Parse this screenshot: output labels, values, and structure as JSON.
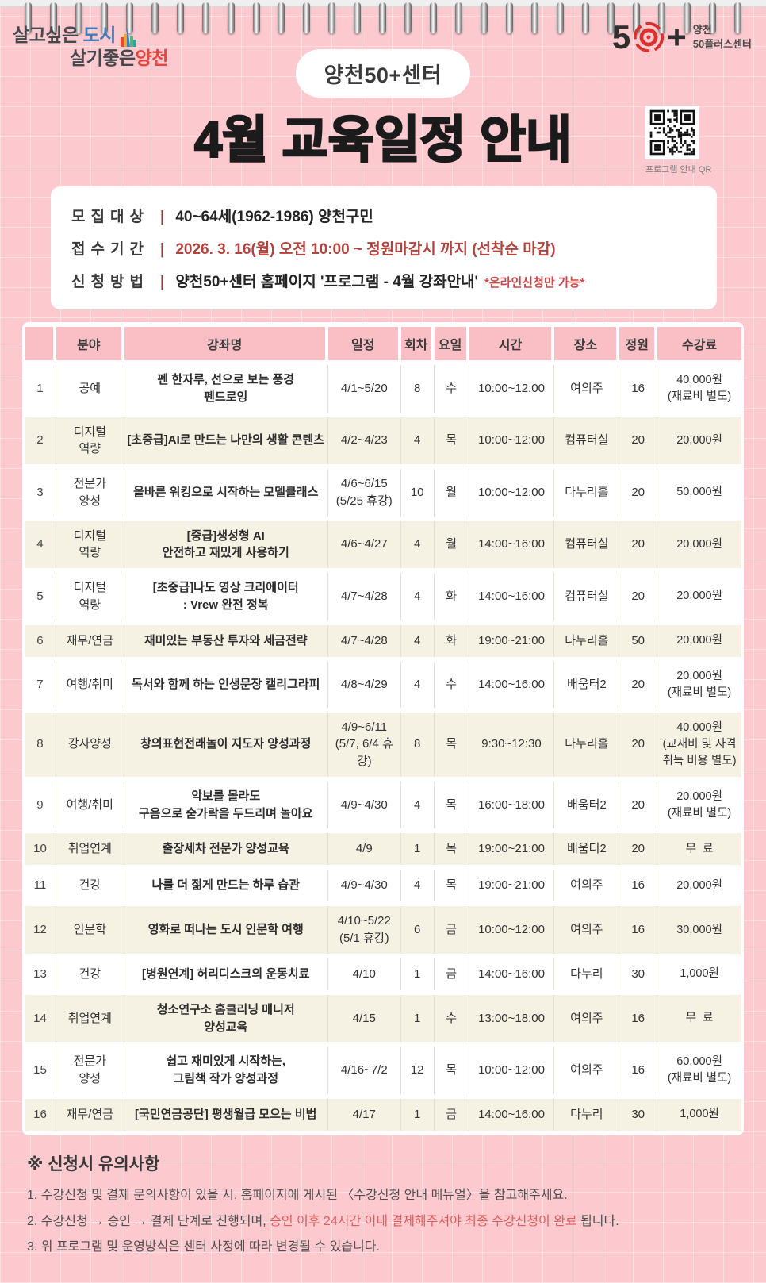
{
  "page": {
    "bg_color": "#fbc9ce",
    "header_pink": "#f9bfc5",
    "stripe_cream": "#f5f1e3",
    "accent_red": "#b6423e"
  },
  "brand": {
    "city_logo": {
      "line1_prefix": "살고싶은 ",
      "line1_highlight": "도시",
      "line2_prefix": "살기좋은",
      "line2_highlight": "양천",
      "building_icon": "building-skyline-icon"
    },
    "fifty_logo": {
      "five": "5",
      "plus": "+",
      "target_icon": "bullseye-icon",
      "org_line1": "양천",
      "org_line2": "50플러스센터"
    }
  },
  "header": {
    "badge": "양천50+센터",
    "title": "4월 교육일정 안내",
    "qr_icon": "qr-code-icon",
    "qr_caption": "프로그램 안내 QR"
  },
  "info": {
    "rows": [
      {
        "label": "모집대상",
        "divider": "|",
        "value": "40~64세(1962-1986) 양천구민"
      },
      {
        "label": "접수기간",
        "divider": "|",
        "value": "2026. 3. 16(월) 오전 10:00 ~ 정원마감시 까지 (선착순 마감)"
      },
      {
        "label": "신청방법",
        "divider": "|",
        "value": "양천50+센터 홈페이지 '프로그램 - 4월 강좌안내'",
        "suffix": "*온라인신청만 가능*"
      }
    ]
  },
  "table": {
    "headers": [
      "",
      "분야",
      "강좌명",
      "일정",
      "회차",
      "요일",
      "시간",
      "장소",
      "정원",
      "수강료"
    ],
    "rows": [
      [
        "1",
        "공예",
        "펜 한자루, 선으로 보는 풍경\n펜드로잉",
        "4/1~5/20",
        "8",
        "수",
        "10:00~12:00",
        "여의주",
        "16",
        "40,000원\n(재료비 별도)"
      ],
      [
        "2",
        "디지털\n역량",
        "[초중급]AI로 만드는 나만의 생활 콘텐츠",
        "4/2~4/23",
        "4",
        "목",
        "10:00~12:00",
        "컴퓨터실",
        "20",
        "20,000원"
      ],
      [
        "3",
        "전문가\n양성",
        "올바른 워킹으로 시작하는 모델클래스",
        "4/6~6/15\n(5/25 휴강)",
        "10",
        "월",
        "10:00~12:00",
        "다누리홀",
        "20",
        "50,000원"
      ],
      [
        "4",
        "디지털\n역량",
        "[중급]생성형 AI\n안전하고 재밌게 사용하기",
        "4/6~4/27",
        "4",
        "월",
        "14:00~16:00",
        "컴퓨터실",
        "20",
        "20,000원"
      ],
      [
        "5",
        "디지털\n역량",
        "[초중급]나도 영상 크리에이터\n: Vrew 완전 정복",
        "4/7~4/28",
        "4",
        "화",
        "14:00~16:00",
        "컴퓨터실",
        "20",
        "20,000원"
      ],
      [
        "6",
        "재무/연금",
        "재미있는 부동산 투자와 세금전략",
        "4/7~4/28",
        "4",
        "화",
        "19:00~21:00",
        "다누리홀",
        "50",
        "20,000원"
      ],
      [
        "7",
        "여행/취미",
        "독서와 함께 하는 인생문장 캘리그라피",
        "4/8~4/29",
        "4",
        "수",
        "14:00~16:00",
        "배움터2",
        "20",
        "20,000원\n(재료비 별도)"
      ],
      [
        "8",
        "강사양성",
        "창의표현전래놀이 지도자 양성과정",
        "4/9~6/11\n(5/7, 6/4 휴강)",
        "8",
        "목",
        "9:30~12:30",
        "다누리홀",
        "20",
        "40,000원\n(교재비 및 자격\n취득 비용 별도)"
      ],
      [
        "9",
        "여행/취미",
        "악보를 몰라도\n구음으로 숟가락을 두드리며 놀아요",
        "4/9~4/30",
        "4",
        "목",
        "16:00~18:00",
        "배움터2",
        "20",
        "20,000원\n(재료비 별도)"
      ],
      [
        "10",
        "취업연계",
        "출장세차 전문가 양성교육",
        "4/9",
        "1",
        "목",
        "19:00~21:00",
        "배움터2",
        "20",
        "무  료"
      ],
      [
        "11",
        "건강",
        "나를 더 젊게 만드는 하루 습관",
        "4/9~4/30",
        "4",
        "목",
        "19:00~21:00",
        "여의주",
        "16",
        "20,000원"
      ],
      [
        "12",
        "인문학",
        "영화로 떠나는 도시 인문학 여행",
        "4/10~5/22\n(5/1 휴강)",
        "6",
        "금",
        "10:00~12:00",
        "여의주",
        "16",
        "30,000원"
      ],
      [
        "13",
        "건강",
        "[병원연계] 허리디스크의 운동치료",
        "4/10",
        "1",
        "금",
        "14:00~16:00",
        "다누리",
        "30",
        "1,000원"
      ],
      [
        "14",
        "취업연계",
        "청소연구소 홈클리닝 매니저\n양성교육",
        "4/15",
        "1",
        "수",
        "13:00~18:00",
        "여의주",
        "16",
        "무  료"
      ],
      [
        "15",
        "전문가\n양성",
        "쉽고 재미있게 시작하는,\n그림책 작가 양성과정",
        "4/16~7/2",
        "12",
        "목",
        "10:00~12:00",
        "여의주",
        "16",
        "60,000원\n(재료비 별도)"
      ],
      [
        "16",
        "재무/연금",
        "[국민연금공단] 평생월급 모으는 비법",
        "4/17",
        "1",
        "금",
        "14:00~16:00",
        "다누리",
        "30",
        "1,000원"
      ]
    ]
  },
  "notes": {
    "title": "※ 신청시 유의사항",
    "items": [
      {
        "text": "1. 수강신청 및 결제 문의사항이 있을 시, 홈페이지에 게시된 〈수강신청 안내 메뉴얼〉을 참고해주세요."
      },
      {
        "prefix": "2. 수강신청 → 승인 → 결제 단계로 진행되며, ",
        "highlight": "승인 이후 24시간 이내 결제해주셔야 최종 수강신청이 완료",
        "suffix": " 됩니다."
      },
      {
        "text": "3. 위 프로그램 및 운영방식은 센터 사정에 따라 변경될 수 있습니다."
      }
    ]
  }
}
